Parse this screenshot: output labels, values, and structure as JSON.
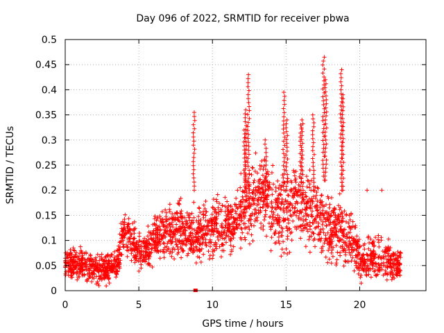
{
  "chart_data": {
    "type": "scatter",
    "title": "Day 096 of 2022, SRMTID for receiver pbwa",
    "xlabel": "GPS time / hours",
    "ylabel": "SRMTID / TECUs",
    "xlim": [
      0,
      24.5
    ],
    "ylim": [
      0,
      0.5
    ],
    "xticks": [
      0,
      5,
      10,
      15,
      20
    ],
    "xtick_labels": [
      "0",
      "5",
      "10",
      "15",
      "20"
    ],
    "yticks": [
      0,
      0.05,
      0.1,
      0.15,
      0.2,
      0.25,
      0.3,
      0.35,
      0.4,
      0.45,
      0.5
    ],
    "ytick_labels": [
      "0",
      "0.05",
      "0.1",
      "0.15",
      "0.2",
      "0.25",
      "0.3",
      "0.35",
      "0.4",
      "0.45",
      "0.5"
    ],
    "grid": true,
    "marker": "+",
    "color": "#ff0000",
    "envelope": {
      "x": [
        0,
        0.5,
        1,
        1.5,
        2,
        2.5,
        3,
        3.5,
        3.8,
        4,
        4.5,
        5,
        5.5,
        6,
        6.5,
        7,
        7.5,
        8,
        8.5,
        9,
        9.5,
        10,
        10.5,
        11,
        11.5,
        12,
        12.5,
        13,
        13.5,
        14,
        14.5,
        15,
        15.5,
        16,
        16.5,
        17,
        17.5,
        18,
        18.5,
        19,
        19.5,
        20,
        20.5,
        21,
        21.5,
        22,
        22.5,
        22.8
      ],
      "center": [
        0.06,
        0.05,
        0.055,
        0.045,
        0.04,
        0.04,
        0.045,
        0.05,
        0.09,
        0.12,
        0.1,
        0.08,
        0.08,
        0.1,
        0.11,
        0.12,
        0.12,
        0.12,
        0.11,
        0.11,
        0.12,
        0.13,
        0.13,
        0.13,
        0.12,
        0.16,
        0.17,
        0.19,
        0.2,
        0.17,
        0.15,
        0.16,
        0.18,
        0.17,
        0.16,
        0.15,
        0.14,
        0.13,
        0.12,
        0.11,
        0.1,
        0.06,
        0.06,
        0.07,
        0.07,
        0.06,
        0.05,
        0.05
      ],
      "spread": [
        0.02,
        0.02,
        0.025,
        0.02,
        0.02,
        0.02,
        0.02,
        0.02,
        0.03,
        0.03,
        0.03,
        0.025,
        0.025,
        0.03,
        0.03,
        0.035,
        0.035,
        0.035,
        0.035,
        0.035,
        0.035,
        0.04,
        0.04,
        0.04,
        0.04,
        0.05,
        0.05,
        0.05,
        0.05,
        0.05,
        0.05,
        0.05,
        0.05,
        0.05,
        0.05,
        0.05,
        0.05,
        0.045,
        0.045,
        0.04,
        0.04,
        0.025,
        0.025,
        0.03,
        0.03,
        0.025,
        0.02,
        0.02
      ]
    },
    "spikes": [
      {
        "x": 8.75,
        "y0": 0.2,
        "y1": 0.355
      },
      {
        "x": 12.2,
        "y0": 0.2,
        "y1": 0.32
      },
      {
        "x": 12.45,
        "y0": 0.2,
        "y1": 0.43
      },
      {
        "x": 12.25,
        "y0": 0.18,
        "y1": 0.36
      },
      {
        "x": 13.6,
        "y0": 0.2,
        "y1": 0.3
      },
      {
        "x": 14.85,
        "y0": 0.2,
        "y1": 0.395
      },
      {
        "x": 15.05,
        "y0": 0.2,
        "y1": 0.34
      },
      {
        "x": 16.0,
        "y0": 0.2,
        "y1": 0.33
      },
      {
        "x": 16.1,
        "y0": 0.2,
        "y1": 0.34
      },
      {
        "x": 17.55,
        "y0": 0.22,
        "y1": 0.465
      },
      {
        "x": 17.7,
        "y0": 0.22,
        "y1": 0.42
      },
      {
        "x": 18.75,
        "y0": 0.2,
        "y1": 0.44
      },
      {
        "x": 18.85,
        "y0": 0.2,
        "y1": 0.39
      },
      {
        "x": 16.85,
        "y0": 0.2,
        "y1": 0.35
      }
    ],
    "extra_points": [
      [
        8.85,
        0.0
      ],
      [
        20.5,
        0.2
      ],
      [
        21.5,
        0.2
      ],
      [
        20.1,
        0.015
      ],
      [
        11.7,
        0.2
      ]
    ]
  }
}
